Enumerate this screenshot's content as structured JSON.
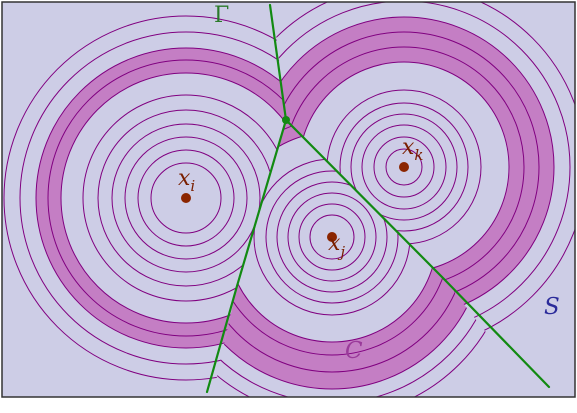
{
  "diagram": {
    "labels": {
      "gamma": "Γ",
      "region_s": "S",
      "band_c": "C",
      "center_i_base": "x",
      "center_i_sub": "i",
      "center_j_base": "x",
      "center_j_sub": "j",
      "center_k_base": "x",
      "center_k_sub": "k"
    },
    "colors": {
      "background": "#cdcde6",
      "band_fill": "#c47ec4",
      "circle_stroke": "#800080",
      "gamma_line": "#128a12",
      "center_point": "#8b2500",
      "label_text": "#7a1f00",
      "gamma_label": "#2a7a2a",
      "s_label": "#2a2a9a",
      "c_label": "#9a3a9a",
      "frame": "#333333"
    }
  }
}
